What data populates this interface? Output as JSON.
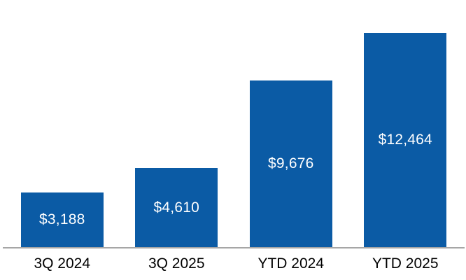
{
  "chart_data": {
    "type": "bar",
    "categories": [
      "3Q 2024",
      "3Q 2025",
      "YTD 2024",
      "YTD 2025"
    ],
    "values": [
      3188,
      4610,
      9676,
      12464
    ],
    "value_labels": [
      "$3,188",
      "$4,610",
      "$9,676",
      "$12,464"
    ],
    "ylim": [
      0,
      12464
    ],
    "grid": false,
    "legend_position": "none",
    "value_label_position": "inside-center",
    "colors": {
      "bar_fill": "#0B5BA5",
      "value_label": "#FFFFFF",
      "category_label": "#000000",
      "axis_line": "#A6A6A6",
      "background": "#FFFFFF"
    }
  }
}
